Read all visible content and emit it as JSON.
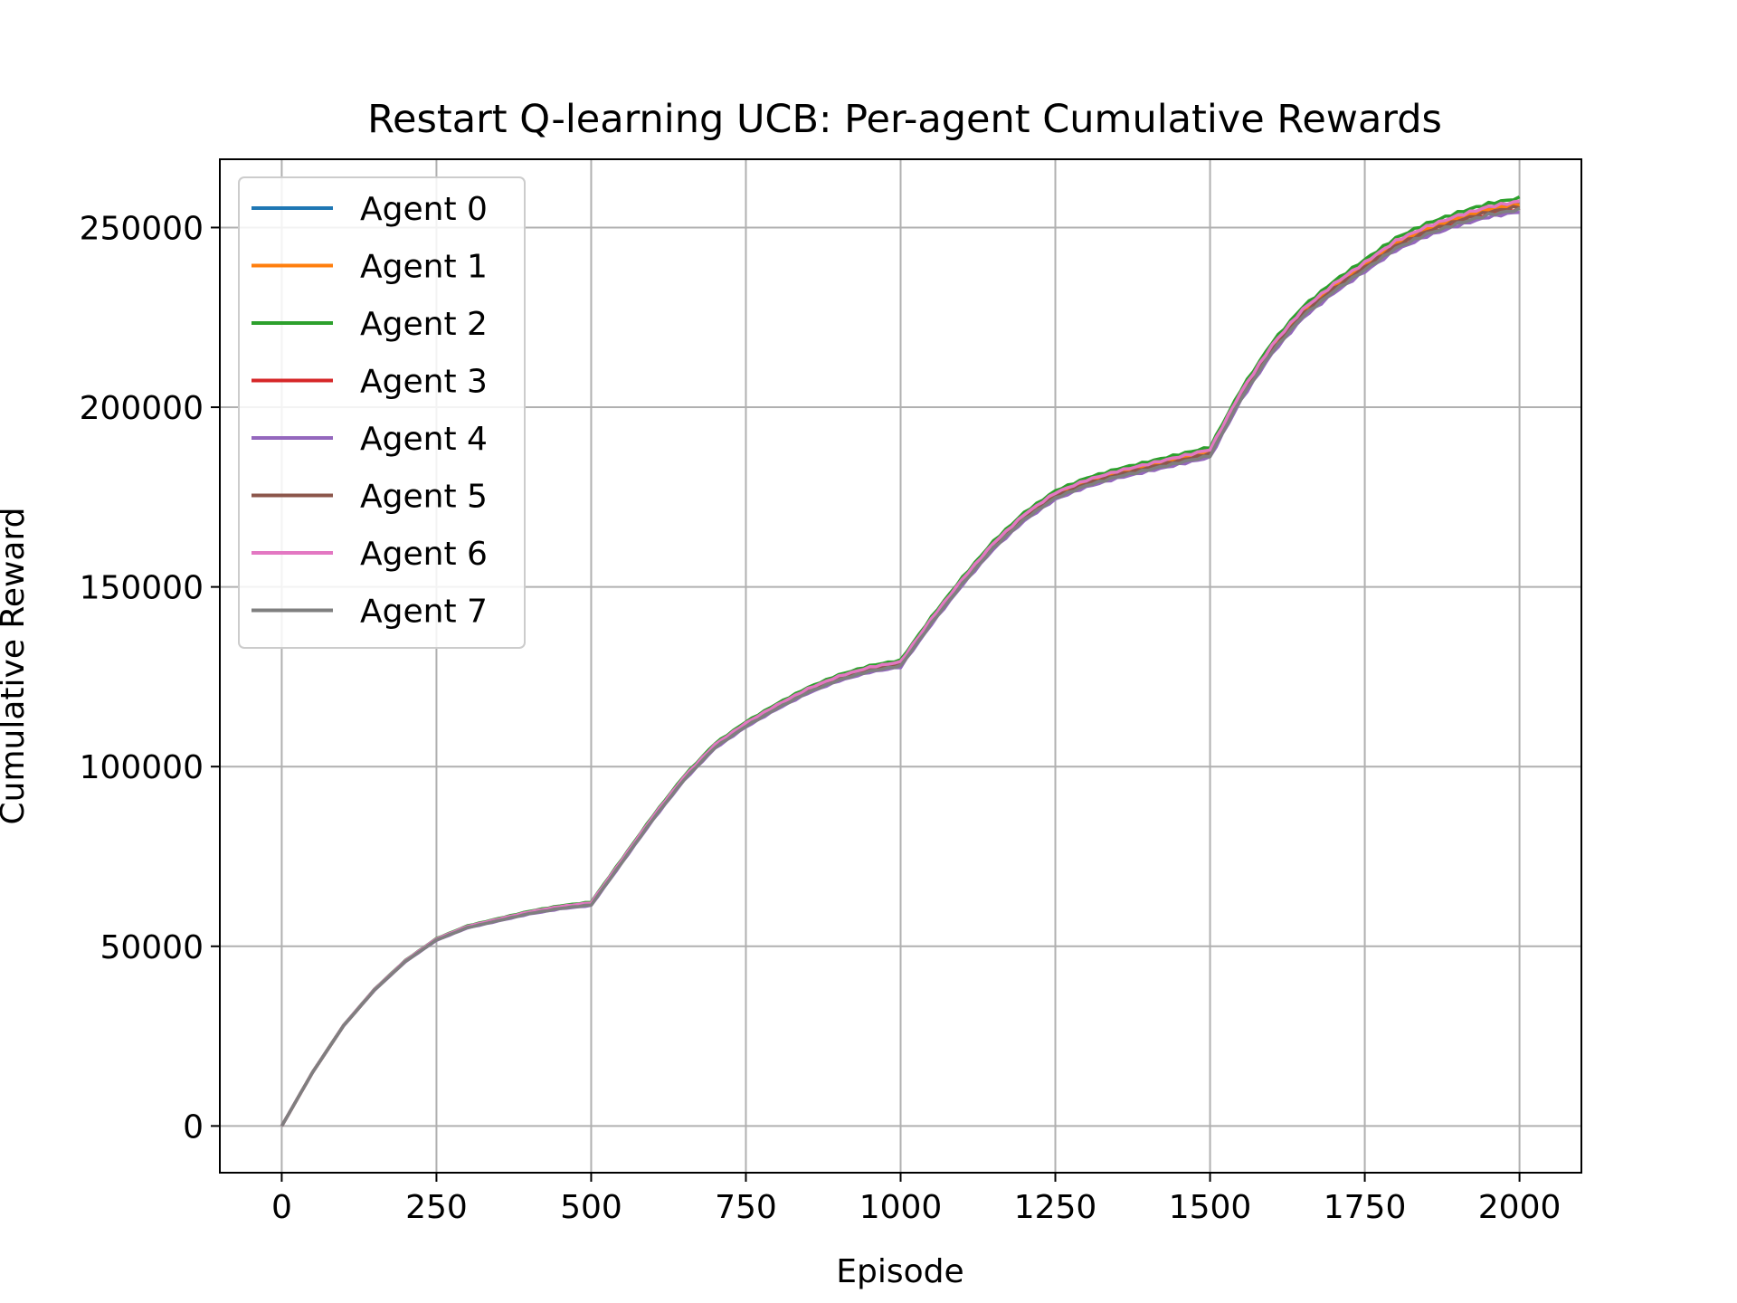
{
  "chart_data": {
    "type": "line",
    "title": "Restart Q-learning UCB: Per-agent Cumulative Rewards",
    "xlabel": "Episode",
    "ylabel": "Cumulative Reward",
    "xlim": [
      -100,
      2100
    ],
    "ylim": [
      -13000,
      269000
    ],
    "xticks": [
      0,
      250,
      500,
      750,
      1000,
      1250,
      1500,
      1750,
      2000
    ],
    "yticks": [
      0,
      50000,
      100000,
      150000,
      200000,
      250000
    ],
    "grid": true,
    "legend_position": "top-left",
    "base_curve": {
      "x": [
        0,
        50,
        100,
        150,
        200,
        250,
        300,
        350,
        400,
        450,
        500,
        550,
        600,
        650,
        700,
        750,
        800,
        850,
        900,
        950,
        1000,
        1050,
        1100,
        1150,
        1200,
        1250,
        1300,
        1350,
        1400,
        1450,
        1500,
        1550,
        1600,
        1650,
        1700,
        1750,
        1800,
        1850,
        1900,
        1950,
        2000
      ],
      "y": [
        0,
        15000,
        28000,
        38000,
        46000,
        52000,
        55500,
        57500,
        59500,
        61000,
        62000,
        74000,
        86000,
        97000,
        106000,
        112000,
        117000,
        121500,
        125000,
        127500,
        129000,
        141000,
        152000,
        162000,
        170000,
        176000,
        179500,
        182000,
        184000,
        186000,
        188000,
        204000,
        217000,
        227000,
        234000,
        240000,
        246000,
        250000,
        253000,
        255500,
        257000
      ]
    },
    "series": [
      {
        "name": "Agent 0",
        "color": "#1f77b4",
        "offset": 0
      },
      {
        "name": "Agent 1",
        "color": "#ff7f0e",
        "offset": -600
      },
      {
        "name": "Agent 2",
        "color": "#2ca02c",
        "offset": 1200
      },
      {
        "name": "Agent 3",
        "color": "#d62728",
        "offset": -1800
      },
      {
        "name": "Agent 4",
        "color": "#9467bd",
        "offset": -2600
      },
      {
        "name": "Agent 5",
        "color": "#8c564b",
        "offset": -1200
      },
      {
        "name": "Agent 6",
        "color": "#e377c2",
        "offset": 300
      },
      {
        "name": "Agent 7",
        "color": "#7f7f7f",
        "offset": -2000
      }
    ]
  }
}
